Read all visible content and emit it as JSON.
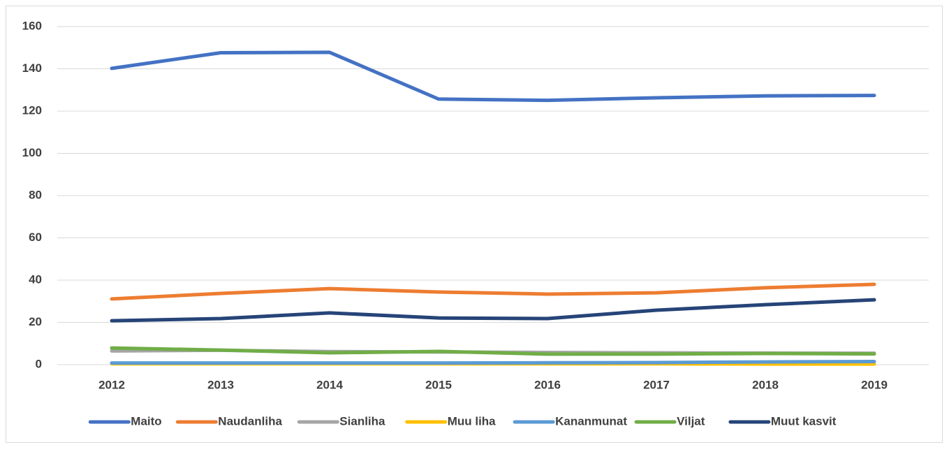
{
  "chart_data": {
    "type": "line",
    "categories": [
      "2012",
      "2013",
      "2014",
      "2015",
      "2016",
      "2017",
      "2018",
      "2019"
    ],
    "series": [
      {
        "name": "Maito",
        "color": "#4472c4",
        "values": [
          140.2,
          147.6,
          147.8,
          125.7,
          125.1,
          126.3,
          127.2,
          127.4
        ]
      },
      {
        "name": "Naudanliha",
        "color": "#ed7d31",
        "values": [
          31.1,
          33.7,
          36.0,
          34.4,
          33.4,
          34.0,
          36.4,
          38.0
        ]
      },
      {
        "name": "Sianliha",
        "color": "#a5a5a5",
        "values": [
          6.5,
          6.8,
          6.2,
          6.0,
          5.8,
          5.6,
          5.5,
          5.4
        ]
      },
      {
        "name": "Muu liha",
        "color": "#ffc000",
        "values": [
          0.4,
          0.4,
          0.4,
          0.4,
          0.4,
          0.4,
          0.3,
          0.3
        ]
      },
      {
        "name": "Kananmunat",
        "color": "#5b9bd5",
        "values": [
          0.8,
          0.8,
          0.8,
          0.8,
          0.9,
          1.0,
          1.3,
          1.5
        ]
      },
      {
        "name": "Viljat",
        "color": "#70ad47",
        "values": [
          7.9,
          6.9,
          5.6,
          6.3,
          5.0,
          5.0,
          5.3,
          5.1
        ]
      },
      {
        "name": "Muut kasvit",
        "color": "#264478",
        "values": [
          20.8,
          21.8,
          24.5,
          22.1,
          21.8,
          25.8,
          28.4,
          30.7
        ]
      }
    ],
    "ylim": [
      0,
      160
    ],
    "yticks": [
      0,
      20,
      40,
      60,
      80,
      100,
      120,
      140,
      160
    ],
    "grid": true,
    "legend": "bottom"
  }
}
